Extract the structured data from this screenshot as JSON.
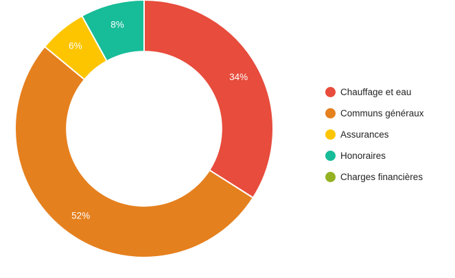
{
  "chart_data": {
    "type": "pie",
    "subtype": "donut",
    "title": "",
    "unit": "%",
    "hole_ratio": 0.6,
    "start_angle_deg": 0,
    "direction": "clockwise",
    "legend_position": "right",
    "legend_marker": "circle",
    "background_color": "#ffffff",
    "slice_label_color": "#ffffff",
    "legend_text_color": "#222222",
    "slices": [
      {
        "label": "Chauffage et eau",
        "value": 34,
        "pct_label": "34%",
        "color": "#e74c3c"
      },
      {
        "label": "Communs généraux",
        "value": 52,
        "pct_label": "52%",
        "color": "#e5801e"
      },
      {
        "label": "Assurances",
        "value": 6,
        "pct_label": "6%",
        "color": "#fdc500"
      },
      {
        "label": "Honoraires",
        "value": 8,
        "pct_label": "8%",
        "color": "#17bc98"
      },
      {
        "label": "Charges financières",
        "value": 0,
        "pct_label": "",
        "color": "#94b223"
      }
    ]
  }
}
